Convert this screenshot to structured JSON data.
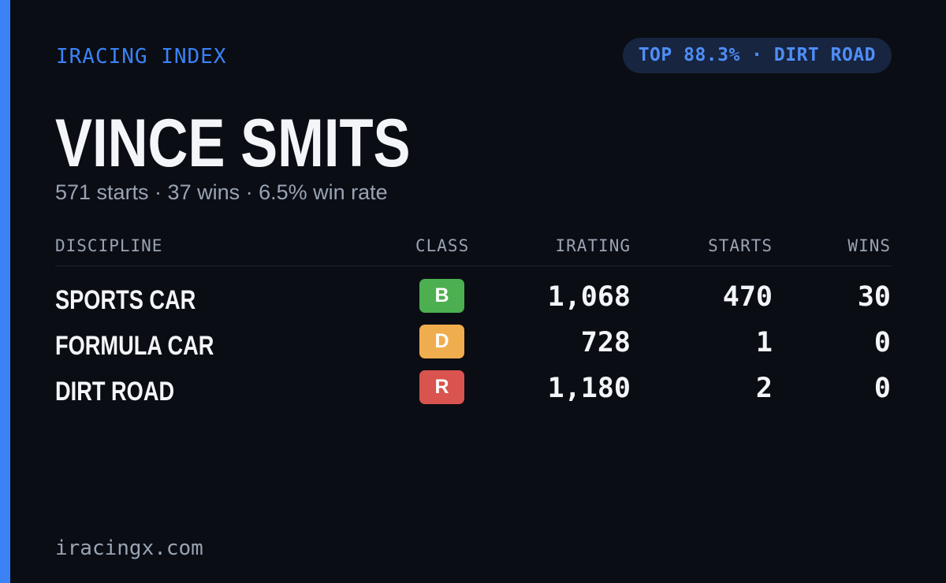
{
  "brand": {
    "title": "IRACING INDEX",
    "accent_color": "#3b82f6"
  },
  "rank": {
    "label": "TOP 88.3% · DIRT ROAD"
  },
  "driver": {
    "name": "VINCE SMITS",
    "summary": "571 starts · 37 wins · 6.5% win rate"
  },
  "table": {
    "headers": {
      "discipline": "DISCIPLINE",
      "class": "CLASS",
      "irating": "IRATING",
      "starts": "STARTS",
      "wins": "WINS"
    },
    "rows": [
      {
        "discipline": "SPORTS CAR",
        "class": "B",
        "class_color": "#4caf50",
        "irating": "1,068",
        "starts": "470",
        "wins": "30"
      },
      {
        "discipline": "FORMULA CAR",
        "class": "D",
        "class_color": "#f0ad4e",
        "irating": "728",
        "starts": "1",
        "wins": "0"
      },
      {
        "discipline": "DIRT ROAD",
        "class": "R",
        "class_color": "#d9534f",
        "irating": "1,180",
        "starts": "2",
        "wins": "0"
      }
    ]
  },
  "footer": {
    "site": "iracingx.com"
  }
}
